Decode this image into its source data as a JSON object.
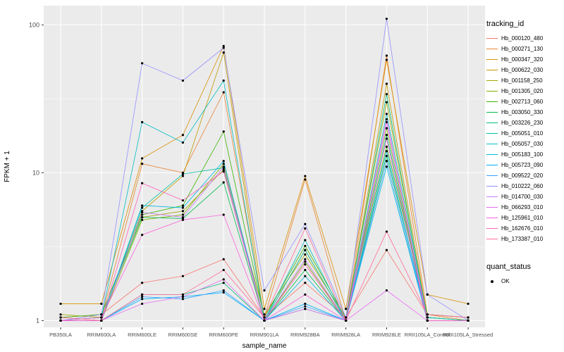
{
  "chart_data": {
    "type": "line",
    "title": "",
    "xlabel": "sample_name",
    "ylabel": "FPKM + 1",
    "y_scale": "log10",
    "y_ticks": [
      1,
      10,
      100
    ],
    "y_minor_ticks": [
      3.162,
      31.62
    ],
    "ylim": [
      0.9,
      135
    ],
    "grid": true,
    "panel_bg": "#EBEBEB",
    "grid_color": "#FFFFFF",
    "point_color": "#000000",
    "legend_position": "right",
    "categories": [
      "PB350LA",
      "RRIM600LA",
      "RRIM600LE",
      "RRIM600SE",
      "RRIM600PE",
      "RRIM901LA",
      "RRIM928BA",
      "RRIM928LA",
      "RRIM928LE",
      "RRII105LA_Control",
      "RRII105LA_Stressed"
    ],
    "series": [
      {
        "name": "Hb_000120_480",
        "color": "#F8766D",
        "values": [
          1.05,
          1.1,
          1.8,
          2.0,
          2.6,
          1.05,
          1.8,
          1.05,
          3.0,
          1.1,
          1.05
        ]
      },
      {
        "name": "Hb_000271_130",
        "color": "#EA8331",
        "values": [
          1.0,
          1.05,
          11.5,
          10.0,
          35,
          1.05,
          9.0,
          1.0,
          62,
          1.1,
          1.0
        ]
      },
      {
        "name": "Hb_000347_320",
        "color": "#D89000",
        "values": [
          1.3,
          1.3,
          12.5,
          18,
          72,
          1.2,
          9.5,
          1.2,
          58,
          1.5,
          1.3
        ]
      },
      {
        "name": "Hb_000622_030",
        "color": "#C09B00",
        "values": [
          1.0,
          1.0,
          5.5,
          9.5,
          65,
          1.0,
          3.0,
          1.0,
          40,
          1.05,
          1.0
        ]
      },
      {
        "name": "Hb_001158_250",
        "color": "#A3A500",
        "values": [
          1.1,
          1.05,
          5.0,
          5.5,
          10.5,
          1.1,
          2.8,
          1.05,
          30,
          1.05,
          1.0
        ]
      },
      {
        "name": "Hb_001305_020",
        "color": "#7CAE00",
        "values": [
          1.0,
          1.0,
          4.8,
          5.2,
          11.5,
          1.0,
          2.5,
          1.0,
          20,
          1.0,
          1.0
        ]
      },
      {
        "name": "Hb_002713_060",
        "color": "#39B600",
        "values": [
          1.05,
          1.1,
          5.2,
          6.0,
          19,
          1.05,
          3.2,
          1.05,
          15,
          1.1,
          1.05
        ]
      },
      {
        "name": "Hb_003050_330",
        "color": "#00BB4E",
        "values": [
          1.0,
          1.05,
          5.0,
          4.9,
          8.6,
          1.0,
          2.2,
          1.0,
          13,
          1.05,
          1.0
        ]
      },
      {
        "name": "Hb_003226_230",
        "color": "#00BF7D",
        "values": [
          1.0,
          1.0,
          1.5,
          1.5,
          1.8,
          1.0,
          1.2,
          1.0,
          34,
          1.0,
          1.0
        ]
      },
      {
        "name": "Hb_005051_010",
        "color": "#00C1A3",
        "values": [
          1.0,
          1.0,
          5.8,
          9.8,
          10.8,
          1.0,
          3.0,
          1.0,
          18,
          1.0,
          1.0
        ]
      },
      {
        "name": "Hb_005057_030",
        "color": "#00BFC4",
        "values": [
          1.0,
          1.05,
          22,
          16,
          42,
          1.0,
          3.5,
          1.0,
          25,
          1.05,
          1.0
        ]
      },
      {
        "name": "Hb_005183_100",
        "color": "#00BAE0",
        "values": [
          1.0,
          1.0,
          6.0,
          5.8,
          12,
          1.0,
          2.0,
          1.0,
          11,
          1.0,
          1.0
        ]
      },
      {
        "name": "Hb_005723_090",
        "color": "#00B0F6",
        "values": [
          1.0,
          1.0,
          1.4,
          1.45,
          1.55,
          1.0,
          1.3,
          1.0,
          14,
          1.0,
          1.0
        ]
      },
      {
        "name": "Hb_009522_020",
        "color": "#35A2FF",
        "values": [
          1.0,
          1.0,
          1.45,
          1.4,
          1.6,
          1.0,
          1.25,
          1.0,
          12,
          1.0,
          1.0
        ]
      },
      {
        "name": "Hb_010222_060",
        "color": "#9590FF",
        "values": [
          1.0,
          1.1,
          55,
          42,
          70,
          1.6,
          4.5,
          1.05,
          110,
          1.5,
          1.0
        ]
      },
      {
        "name": "Hb_014700_030",
        "color": "#C77CFF",
        "values": [
          1.0,
          1.0,
          5.4,
          5.0,
          11,
          1.0,
          2.6,
          1.0,
          22,
          1.0,
          1.0
        ]
      },
      {
        "name": "Hb_066293_010",
        "color": "#E76BF3",
        "values": [
          1.0,
          1.0,
          1.3,
          1.45,
          1.9,
          1.0,
          1.2,
          1.0,
          1.6,
          1.0,
          1.0
        ]
      },
      {
        "name": "Hb_125961_010",
        "color": "#FA62DB",
        "values": [
          1.0,
          1.05,
          3.8,
          4.8,
          5.2,
          1.0,
          1.5,
          1.0,
          23,
          1.0,
          1.0
        ]
      },
      {
        "name": "Hb_162676_010",
        "color": "#FF62BC",
        "values": [
          1.0,
          1.0,
          8.5,
          6.5,
          10.2,
          1.0,
          2.4,
          1.0,
          17,
          1.0,
          1.0
        ]
      },
      {
        "name": "Hb_173387_010",
        "color": "#FF6A98",
        "values": [
          1.05,
          1.0,
          1.5,
          1.5,
          2.2,
          1.05,
          4.2,
          1.0,
          4.0,
          1.1,
          1.05
        ]
      }
    ]
  },
  "legend": {
    "color_legend_title": "tracking_id",
    "shape_legend_title": "quant_status",
    "shape_legend_items": [
      {
        "label": "OK",
        "symbol": "point",
        "color": "#000000"
      }
    ]
  },
  "axes": {
    "x_title": "sample_name",
    "y_title": "FPKM + 1",
    "tick_label_color": "#4D4D4D"
  }
}
